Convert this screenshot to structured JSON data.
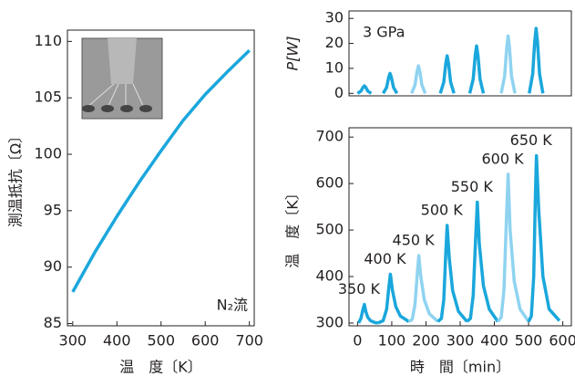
{
  "chart_data": [
    {
      "type": "line",
      "xlabel": "温　度〔K〕",
      "ylabel": "測温抵抗〔Ω〕",
      "annotation": "N₂流",
      "x": [
        300,
        350,
        400,
        450,
        500,
        550,
        600,
        650,
        700
      ],
      "values": [
        87.8,
        91.3,
        94.5,
        97.5,
        100.3,
        103,
        105.3,
        107.3,
        109.2
      ],
      "color": "#1aa7dc",
      "xlim": [
        288,
        711
      ],
      "ylim": [
        84.8,
        111
      ],
      "xticks": [
        300,
        400,
        500,
        600,
        700
      ],
      "yticks": [
        85,
        90,
        95,
        100,
        105,
        110
      ]
    },
    {
      "type": "line",
      "ylabel": "P[W]",
      "annotation": "3 GPa",
      "series": [
        {
          "color": "#1aa7dc",
          "x": [
            0,
            10,
            16,
            20,
            24,
            30,
            40
          ],
          "values": [
            0,
            0.9,
            2.4,
            3,
            2.4,
            0.9,
            0
          ]
        },
        {
          "color": "#1aa7dc",
          "x": [
            75,
            85,
            91,
            95,
            99,
            105,
            115
          ],
          "values": [
            0,
            2.4,
            6.4,
            8,
            6.4,
            2.4,
            0
          ]
        },
        {
          "color": "#8fd3f0",
          "x": [
            158,
            168,
            174,
            178,
            182,
            188,
            198
          ],
          "values": [
            0,
            3.3,
            8.8,
            11,
            8.8,
            3.3,
            0
          ]
        },
        {
          "color": "#1aa7dc",
          "x": [
            242,
            252,
            258,
            262,
            266,
            272,
            282
          ],
          "values": [
            0,
            4.5,
            12,
            15,
            12,
            4.5,
            0
          ]
        },
        {
          "color": "#1aa7dc",
          "x": [
            328,
            338,
            344,
            348,
            352,
            358,
            368
          ],
          "values": [
            0,
            5.7,
            15.2,
            19,
            15.2,
            5.7,
            0
          ]
        },
        {
          "color": "#8fd3f0",
          "x": [
            420,
            430,
            436,
            440,
            444,
            450,
            460
          ],
          "values": [
            0,
            6.9,
            18.4,
            23,
            18.4,
            6.9,
            0
          ]
        },
        {
          "color": "#1aa7dc",
          "x": [
            502,
            512,
            518,
            522,
            526,
            532,
            542
          ],
          "values": [
            0,
            7.8,
            20.8,
            26,
            20.8,
            7.8,
            0
          ]
        }
      ],
      "xlim": [
        -25,
        625
      ],
      "ylim": [
        -1,
        33
      ],
      "yticks": [
        0,
        10,
        20,
        30
      ]
    },
    {
      "type": "line",
      "xlabel": "時　間〔min〕",
      "ylabel": "温　度〔K〕",
      "series": [
        {
          "label": "350 K",
          "color": "#1aa7dc",
          "x": [
            3,
            10,
            16,
            20,
            24,
            30,
            38,
            50,
            60
          ],
          "values": [
            300,
            310,
            330,
            340,
            325,
            312,
            305,
            301,
            300
          ]
        },
        {
          "label": "400 K",
          "color": "#1aa7dc",
          "x": [
            60,
            75,
            85,
            92,
            96,
            102,
            112,
            125,
            150
          ],
          "values": [
            300,
            305,
            330,
            380,
            405,
            370,
            335,
            315,
            303
          ]
        },
        {
          "label": "450 K",
          "color": "#8fd3f0",
          "x": [
            150,
            160,
            168,
            175,
            179,
            185,
            195,
            210,
            235
          ],
          "values": [
            303,
            308,
            340,
            410,
            445,
            400,
            350,
            320,
            303
          ]
        },
        {
          "label": "500 K",
          "color": "#1aa7dc",
          "x": [
            235,
            245,
            252,
            258,
            262,
            268,
            278,
            295,
            320
          ],
          "values": [
            303,
            310,
            350,
            450,
            510,
            440,
            370,
            325,
            303
          ]
        },
        {
          "label": "550 K",
          "color": "#1aa7dc",
          "x": [
            320,
            330,
            338,
            345,
            350,
            356,
            368,
            385,
            410
          ],
          "values": [
            303,
            310,
            360,
            480,
            560,
            470,
            380,
            330,
            303
          ]
        },
        {
          "label": "600 K",
          "color": "#8fd3f0",
          "x": [
            410,
            420,
            428,
            435,
            440,
            446,
            458,
            475,
            500
          ],
          "values": [
            303,
            312,
            370,
            520,
            620,
            500,
            390,
            330,
            303
          ]
        },
        {
          "label": "650 K",
          "color": "#1aa7dc",
          "x": [
            500,
            508,
            515,
            520,
            523,
            530,
            542,
            560,
            590
          ],
          "values": [
            303,
            315,
            400,
            580,
            660,
            540,
            400,
            330,
            305
          ]
        }
      ],
      "xlim": [
        -25,
        625
      ],
      "ylim": [
        294,
        720
      ],
      "xticks": [
        0,
        100,
        200,
        300,
        400,
        500,
        600
      ],
      "yticks": [
        300,
        400,
        500,
        600,
        700
      ]
    }
  ]
}
